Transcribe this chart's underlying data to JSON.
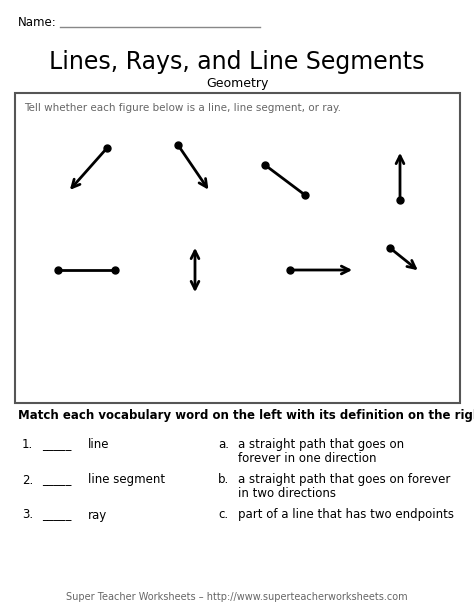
{
  "title": "Lines, Rays, and Line Segments",
  "subtitle": "Geometry",
  "name_label": "Name:",
  "bg_color": "#ffffff",
  "text_color": "#000000",
  "gray_color": "#666666",
  "instruction1": "Tell whether each figure below is a line, line segment, or ray.",
  "instruction2": "Match each vocabulary word on the left with its definition on the right.",
  "footer": "Super Teacher Worksheets – http://www.superteacherworksheets.com",
  "match_items": [
    {
      "num": "1.",
      "blank": "_____",
      "word": "line"
    },
    {
      "num": "2.",
      "blank": "_____",
      "word": "line segment"
    },
    {
      "num": "3.",
      "blank": "_____",
      "word": "ray"
    }
  ],
  "match_defs": [
    {
      "letter": "a.",
      "text1": "a straight path that goes on",
      "text2": "forever in one direction"
    },
    {
      "letter": "b.",
      "text1": "a straight path that goes on forever",
      "text2": "in two directions"
    },
    {
      "letter": "c.",
      "text1": "part of a line that has two endpoints",
      "text2": ""
    }
  ]
}
